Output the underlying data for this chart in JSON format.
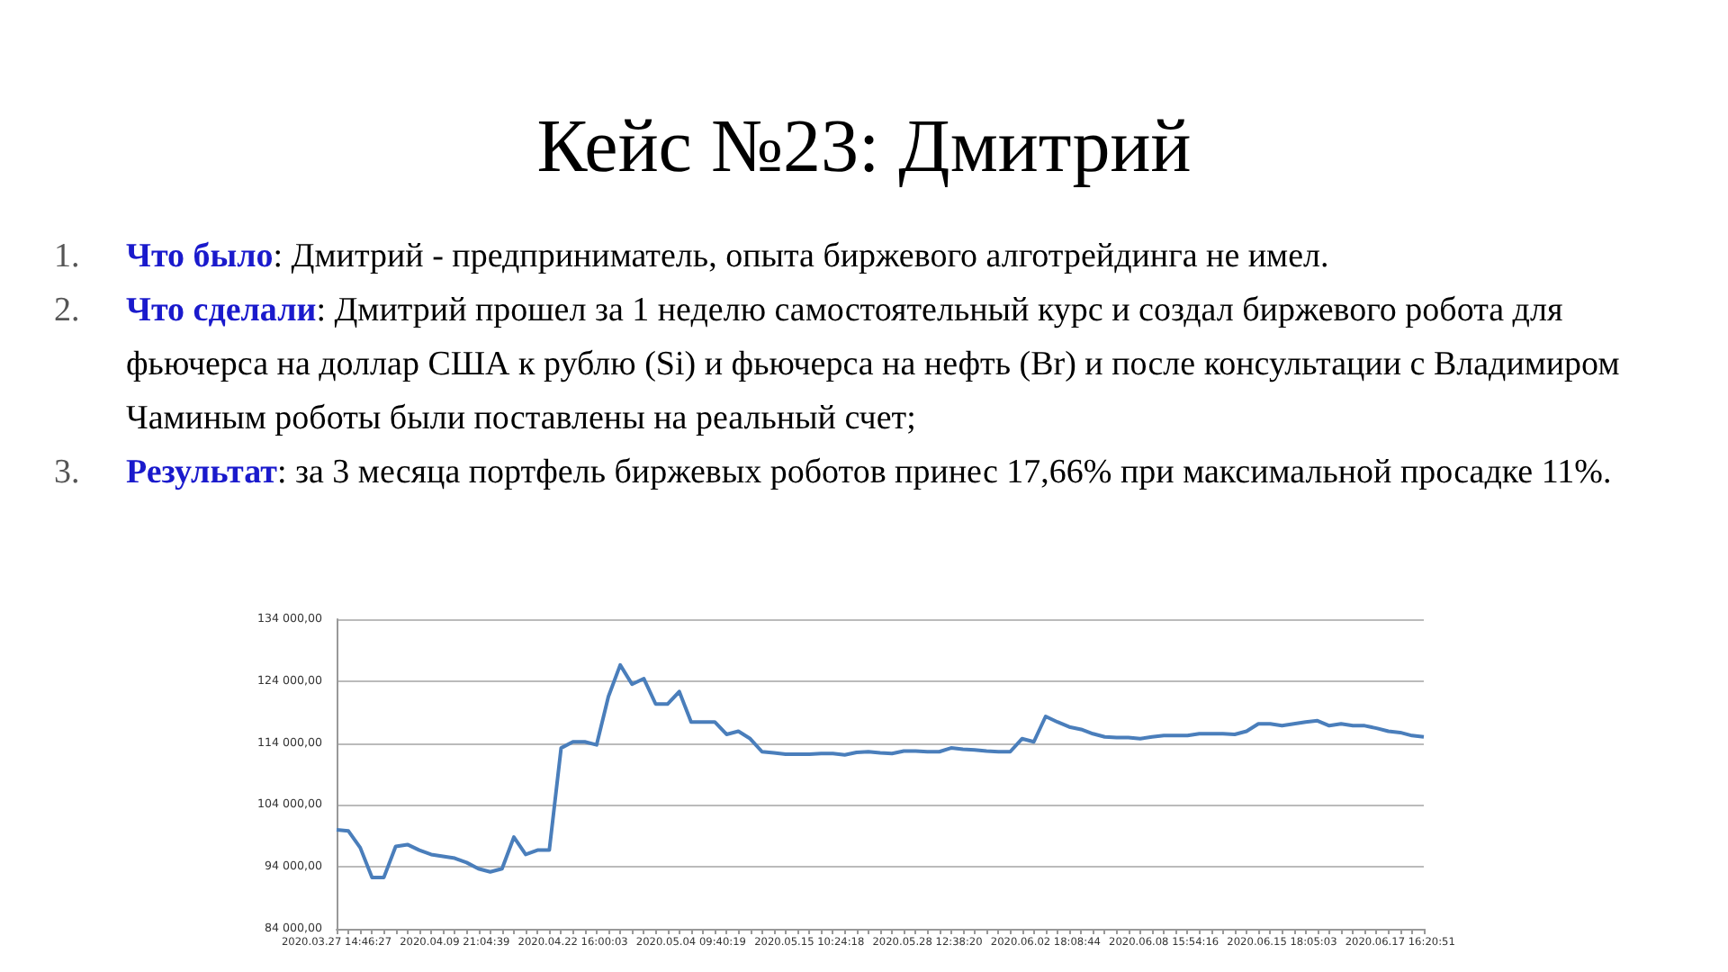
{
  "chart_data": {
    "type": "line",
    "title": "Кейс №23: Дмитрий",
    "annotations": [
      "1. Что было: Дмитрий - предприниматель, опыта биржевого алготрейдинга не имел.",
      "2. Что сделали: Дмитрий прошел за 1 неделю самостоятельный курс и создал биржевого робота для фьючерса на доллар США к рублю (Si) и фьючерса на нефть (Br) и после консультации с Владимиром Чаминым роботы были поставлены на реальный счет;",
      "3. Результат: за 3 месяца портфель биржевых роботов принес 17,66% при максимальной просадке 11%."
    ],
    "categories": [
      "2020.03.27 14:46:27",
      null,
      null,
      null,
      null,
      null,
      null,
      null,
      null,
      null,
      "2020.04.09 21:04:39",
      null,
      null,
      null,
      null,
      null,
      null,
      null,
      null,
      null,
      "2020.04.22 16:00:03",
      null,
      null,
      null,
      null,
      null,
      null,
      null,
      null,
      null,
      "2020.05.04 09:40:19",
      null,
      null,
      null,
      null,
      null,
      null,
      null,
      null,
      null,
      "2020.05.15 10:24:18",
      null,
      null,
      null,
      null,
      null,
      null,
      null,
      null,
      null,
      "2020.05.28 12:38:20",
      null,
      null,
      null,
      null,
      null,
      null,
      null,
      null,
      null,
      "2020.06.02 18:08:44",
      null,
      null,
      null,
      null,
      null,
      null,
      null,
      null,
      null,
      "2020.06.08 15:54:16",
      null,
      null,
      null,
      null,
      null,
      null,
      null,
      null,
      null,
      "2020.06.15 18:05:03",
      null,
      null,
      null,
      null,
      null,
      null,
      null,
      null,
      null,
      "2020.06.17 16:20:51",
      null,
      null
    ],
    "series": [
      {
        "color": "#4a7ebb",
        "values": [
          100000,
          99800,
          97100,
          92300,
          92300,
          97300,
          97600,
          96700,
          96000,
          95700,
          95400,
          94700,
          93700,
          93200,
          93700,
          98800,
          96000,
          96700,
          96700,
          113200,
          114200,
          114200,
          113700,
          121500,
          126600,
          123500,
          124400,
          120300,
          120300,
          122300,
          117400,
          117400,
          117400,
          115400,
          115900,
          114700,
          112600,
          112400,
          112200,
          112200,
          112200,
          112300,
          112300,
          112100,
          112500,
          112600,
          112400,
          112300,
          112700,
          112700,
          112600,
          112600,
          113200,
          113000,
          112900,
          112700,
          112600,
          112600,
          114700,
          114200,
          118300,
          117400,
          116600,
          116200,
          115500,
          115000,
          114900,
          114900,
          114700,
          115000,
          115200,
          115200,
          115200,
          115500,
          115500,
          115500,
          115400,
          115900,
          117100,
          117100,
          116800,
          117100,
          117400,
          117600,
          116800,
          117100,
          116800,
          116800,
          116400,
          115900,
          115700,
          115200,
          115000
        ]
      }
    ],
    "ylim": [
      84000,
      134000
    ],
    "yticks": [
      {
        "value": 84000,
        "label": "84 000,00"
      },
      {
        "value": 94000,
        "label": "94 000,00"
      },
      {
        "value": 104000,
        "label": "104 000,00"
      },
      {
        "value": 114000,
        "label": "114 000,00"
      },
      {
        "value": 124000,
        "label": "124 000,00"
      },
      {
        "value": 134000,
        "label": "134 000,00"
      }
    ],
    "grid": "y",
    "marker": "none",
    "line_style": "solid"
  }
}
